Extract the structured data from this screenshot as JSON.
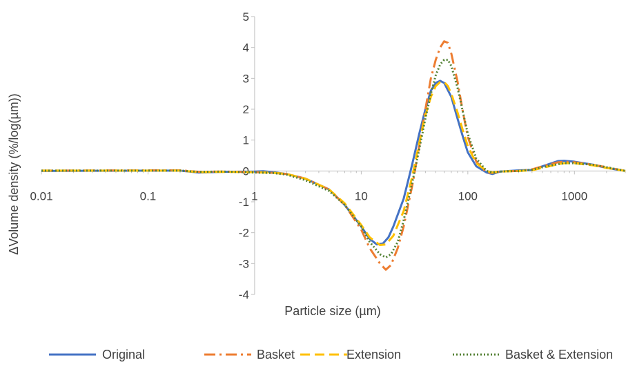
{
  "chart_data": {
    "type": "line",
    "xscale": "log",
    "xlim": [
      0.01,
      3000
    ],
    "ylim": [
      -4,
      5
    ],
    "xlabel": "Particle size (µm)",
    "ylabel": "ΔVolume density (%/log(µm))",
    "x_ticks": [
      0.01,
      0.1,
      1,
      10,
      100,
      1000
    ],
    "x_tick_labels": [
      "0.01",
      "0.1",
      "1",
      "10",
      "100",
      "1000"
    ],
    "y_ticks": [
      -4,
      -3,
      -2,
      -1,
      0,
      1,
      2,
      3,
      4,
      5
    ],
    "y_tick_labels": [
      "-4",
      "-3",
      "-2",
      "-1",
      "0",
      "1",
      "2",
      "3",
      "4",
      "5"
    ],
    "grid": false,
    "legend_position": "bottom",
    "series": [
      {
        "name": "Original",
        "color": "#4472C4",
        "dash": "solid",
        "points": [
          [
            0.01,
            0
          ],
          [
            0.2,
            0.01
          ],
          [
            0.3,
            -0.05
          ],
          [
            0.5,
            -0.03
          ],
          [
            1,
            -0.02
          ],
          [
            1.2,
            -0.01
          ],
          [
            1.5,
            -0.04
          ],
          [
            2,
            -0.1
          ],
          [
            3,
            -0.25
          ],
          [
            5,
            -0.6
          ],
          [
            7,
            -1.1
          ],
          [
            10,
            -1.8
          ],
          [
            12,
            -2.2
          ],
          [
            14,
            -2.38
          ],
          [
            16,
            -2.35
          ],
          [
            18,
            -2.15
          ],
          [
            20,
            -1.8
          ],
          [
            25,
            -0.9
          ],
          [
            30,
            0.2
          ],
          [
            35,
            1.2
          ],
          [
            40,
            2.0
          ],
          [
            45,
            2.6
          ],
          [
            50,
            2.85
          ],
          [
            55,
            2.92
          ],
          [
            60,
            2.85
          ],
          [
            70,
            2.4
          ],
          [
            80,
            1.7
          ],
          [
            90,
            1.1
          ],
          [
            100,
            0.6
          ],
          [
            120,
            0.15
          ],
          [
            150,
            -0.05
          ],
          [
            170,
            -0.1
          ],
          [
            200,
            -0.02
          ],
          [
            300,
            0.02
          ],
          [
            400,
            0.03
          ],
          [
            500,
            0.15
          ],
          [
            700,
            0.32
          ],
          [
            800,
            0.33
          ],
          [
            1000,
            0.3
          ],
          [
            1500,
            0.2
          ],
          [
            2000,
            0.1
          ],
          [
            3000,
            0.0
          ]
        ]
      },
      {
        "name": "Basket",
        "color": "#ED7D31",
        "dash": "dashdot",
        "points": [
          [
            0.01,
            0.01
          ],
          [
            0.2,
            0.02
          ],
          [
            0.3,
            -0.03
          ],
          [
            0.5,
            -0.02
          ],
          [
            1,
            -0.04
          ],
          [
            1.5,
            -0.06
          ],
          [
            2,
            -0.1
          ],
          [
            3,
            -0.25
          ],
          [
            5,
            -0.6
          ],
          [
            7,
            -1.1
          ],
          [
            10,
            -1.9
          ],
          [
            12,
            -2.5
          ],
          [
            15,
            -3.0
          ],
          [
            17,
            -3.2
          ],
          [
            19,
            -3.05
          ],
          [
            22,
            -2.5
          ],
          [
            25,
            -1.8
          ],
          [
            30,
            -0.5
          ],
          [
            35,
            0.8
          ],
          [
            40,
            2.0
          ],
          [
            45,
            3.0
          ],
          [
            50,
            3.6
          ],
          [
            55,
            4.0
          ],
          [
            60,
            4.2
          ],
          [
            65,
            4.15
          ],
          [
            70,
            3.8
          ],
          [
            80,
            2.9
          ],
          [
            90,
            1.9
          ],
          [
            100,
            1.1
          ],
          [
            120,
            0.3
          ],
          [
            150,
            -0.05
          ],
          [
            170,
            -0.06
          ],
          [
            200,
            -0.02
          ],
          [
            300,
            0.0
          ],
          [
            400,
            0.05
          ],
          [
            500,
            0.15
          ],
          [
            700,
            0.28
          ],
          [
            800,
            0.3
          ],
          [
            1000,
            0.28
          ],
          [
            1500,
            0.2
          ],
          [
            2000,
            0.12
          ],
          [
            3000,
            0.0
          ]
        ]
      },
      {
        "name": "Extension",
        "color": "#FFC000",
        "dash": "dash",
        "points": [
          [
            0.01,
            0.01
          ],
          [
            0.2,
            0.01
          ],
          [
            0.3,
            -0.04
          ],
          [
            0.5,
            -0.03
          ],
          [
            1,
            -0.04
          ],
          [
            1.5,
            -0.06
          ],
          [
            2,
            -0.1
          ],
          [
            3,
            -0.25
          ],
          [
            5,
            -0.6
          ],
          [
            7,
            -1.05
          ],
          [
            10,
            -1.75
          ],
          [
            12,
            -2.15
          ],
          [
            15,
            -2.4
          ],
          [
            17,
            -2.38
          ],
          [
            20,
            -2.1
          ],
          [
            25,
            -1.3
          ],
          [
            30,
            -0.2
          ],
          [
            35,
            0.9
          ],
          [
            40,
            1.8
          ],
          [
            45,
            2.4
          ],
          [
            50,
            2.75
          ],
          [
            55,
            2.88
          ],
          [
            60,
            2.88
          ],
          [
            65,
            2.75
          ],
          [
            70,
            2.5
          ],
          [
            80,
            1.9
          ],
          [
            90,
            1.3
          ],
          [
            100,
            0.8
          ],
          [
            120,
            0.25
          ],
          [
            150,
            0.0
          ],
          [
            170,
            -0.05
          ],
          [
            200,
            -0.02
          ],
          [
            300,
            0.0
          ],
          [
            400,
            0.02
          ],
          [
            500,
            0.1
          ],
          [
            700,
            0.22
          ],
          [
            800,
            0.25
          ],
          [
            1000,
            0.25
          ],
          [
            1500,
            0.18
          ],
          [
            2000,
            0.1
          ],
          [
            3000,
            0.0
          ]
        ]
      },
      {
        "name": "Basket & Extension",
        "color": "#548235",
        "dash": "dot",
        "points": [
          [
            0.01,
            0.01
          ],
          [
            0.2,
            0.01
          ],
          [
            0.3,
            -0.03
          ],
          [
            0.5,
            -0.02
          ],
          [
            1,
            -0.05
          ],
          [
            1.5,
            -0.07
          ],
          [
            2,
            -0.12
          ],
          [
            3,
            -0.3
          ],
          [
            5,
            -0.65
          ],
          [
            7,
            -1.1
          ],
          [
            10,
            -1.8
          ],
          [
            12,
            -2.3
          ],
          [
            15,
            -2.7
          ],
          [
            17,
            -2.8
          ],
          [
            19,
            -2.7
          ],
          [
            22,
            -2.3
          ],
          [
            25,
            -1.6
          ],
          [
            30,
            -0.4
          ],
          [
            35,
            0.7
          ],
          [
            40,
            1.7
          ],
          [
            45,
            2.5
          ],
          [
            50,
            3.1
          ],
          [
            55,
            3.45
          ],
          [
            60,
            3.6
          ],
          [
            65,
            3.6
          ],
          [
            70,
            3.4
          ],
          [
            80,
            2.7
          ],
          [
            90,
            1.9
          ],
          [
            100,
            1.2
          ],
          [
            120,
            0.4
          ],
          [
            150,
            0.0
          ],
          [
            170,
            -0.05
          ],
          [
            200,
            -0.02
          ],
          [
            300,
            0.0
          ],
          [
            400,
            0.04
          ],
          [
            500,
            0.12
          ],
          [
            700,
            0.22
          ],
          [
            800,
            0.25
          ],
          [
            1000,
            0.25
          ],
          [
            1500,
            0.2
          ],
          [
            2000,
            0.12
          ],
          [
            3000,
            0.0
          ]
        ]
      }
    ]
  }
}
